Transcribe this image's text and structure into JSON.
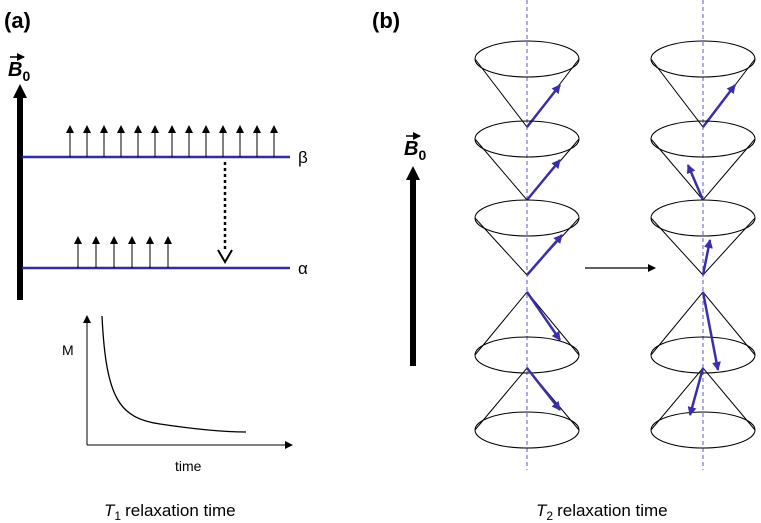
{
  "panel_a": {
    "label": "(a)",
    "field": {
      "symbol": "B",
      "subscript": "0"
    },
    "upper_level": "β",
    "lower_level": "α",
    "graph": {
      "y_label": "M",
      "x_label": "time"
    },
    "caption": {
      "symbol": "T",
      "subscript": "1",
      "text": "relaxation time"
    }
  },
  "panel_b": {
    "label": "(b)",
    "field": {
      "symbol": "B",
      "subscript": "0"
    },
    "caption": {
      "symbol": "T",
      "subscript": "2",
      "text": "relaxation time"
    }
  }
}
